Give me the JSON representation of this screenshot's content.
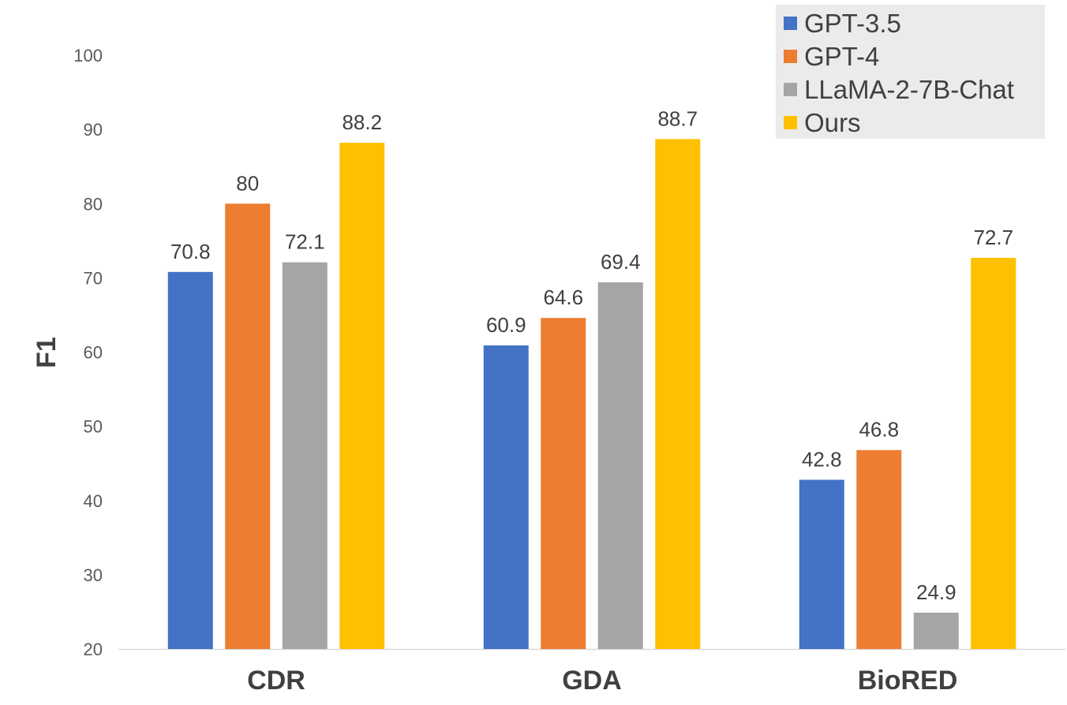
{
  "chart_data": {
    "type": "bar",
    "title": "",
    "xlabel": "",
    "ylabel": "F1",
    "ylim": [
      20,
      100
    ],
    "yticks": [
      20,
      30,
      40,
      50,
      60,
      70,
      80,
      90,
      100
    ],
    "categories": [
      "CDR",
      "GDA",
      "BioRED"
    ],
    "series": [
      {
        "name": "GPT-3.5",
        "color": "#4472C4",
        "values": [
          70.8,
          60.9,
          42.8
        ],
        "labels": [
          "70.8",
          "60.9",
          "42.8"
        ]
      },
      {
        "name": "GPT-4",
        "color": "#ED7D31",
        "values": [
          80,
          64.6,
          46.8
        ],
        "labels": [
          "80",
          "64.6",
          "46.8"
        ]
      },
      {
        "name": "LLaMA-2-7B-Chat",
        "color": "#A5A5A5",
        "values": [
          72.1,
          69.4,
          24.9
        ],
        "labels": [
          "72.1",
          "69.4",
          "24.9"
        ]
      },
      {
        "name": "Ours",
        "color": "#FFC000",
        "values": [
          88.2,
          88.7,
          72.7
        ],
        "labels": [
          "88.2",
          "88.7",
          "72.7"
        ]
      }
    ],
    "legend_position": "top-right",
    "grid": false
  },
  "colors": {
    "axis": "#D9D9D9",
    "legend_background": "#EBEBEB"
  }
}
